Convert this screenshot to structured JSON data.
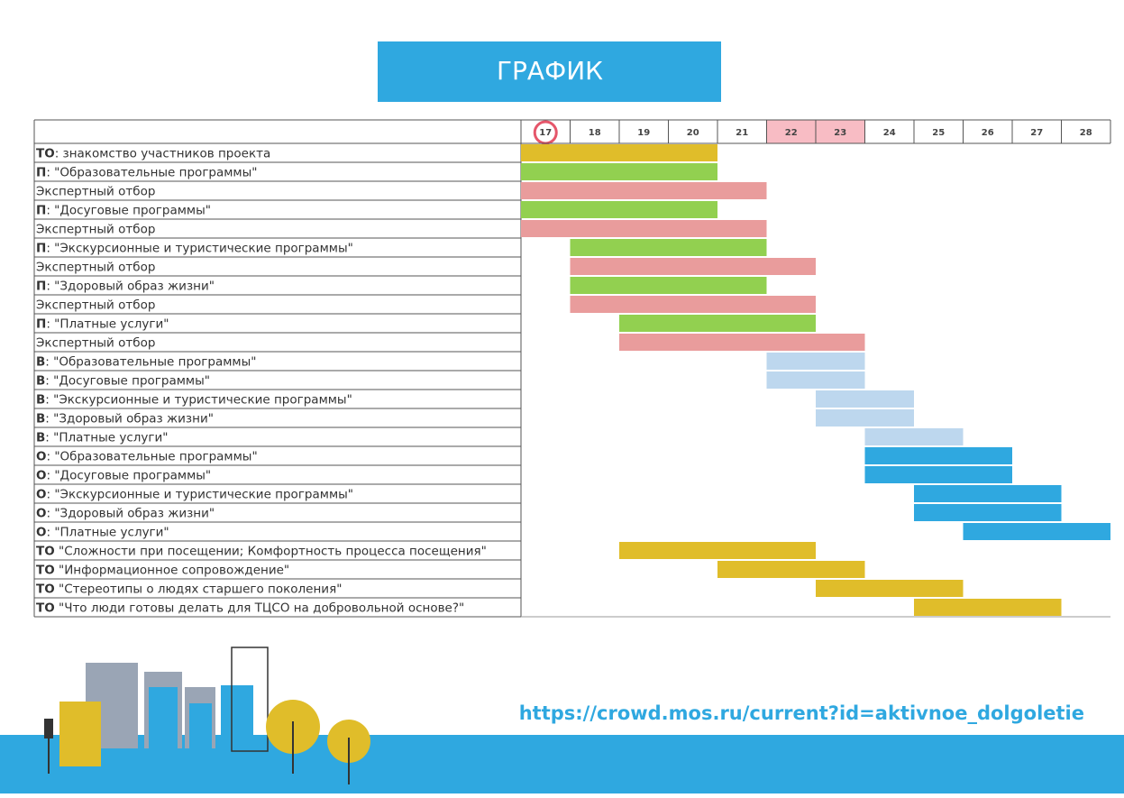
{
  "chart_data": {
    "type": "gantt",
    "title": "ГРАФИК",
    "days": [
      17,
      18,
      19,
      20,
      21,
      22,
      23,
      24,
      25,
      26,
      27,
      28
    ],
    "highlight_days": [
      22,
      23
    ],
    "circled_day": 17,
    "tasks": [
      {
        "prefix": "ТО",
        "label": ": знакомство участников проекта",
        "start": 17,
        "end": 20,
        "color": "#e0bd2a"
      },
      {
        "prefix": "П",
        "label": ": \"Образовательные программы\"",
        "start": 17,
        "end": 20,
        "color": "#92d050"
      },
      {
        "label": "Экспертный отбор",
        "start": 17,
        "end": 21,
        "color": "#e99c9c"
      },
      {
        "prefix": "П",
        "label": ": \"Досуговые программы\"",
        "start": 17,
        "end": 20,
        "color": "#92d050"
      },
      {
        "label": "Экспертный отбор",
        "start": 17,
        "end": 21,
        "color": "#e99c9c"
      },
      {
        "prefix": "П",
        "label": ": \"Экскурсионные и туристические программы\"",
        "start": 18,
        "end": 21,
        "color": "#92d050"
      },
      {
        "label": "Экспертный отбор",
        "start": 18,
        "end": 22,
        "color": "#e99c9c"
      },
      {
        "prefix": "П",
        "label": ": \"Здоровый образ жизни\"",
        "start": 18,
        "end": 21,
        "color": "#92d050"
      },
      {
        "label": "Экспертный отбор",
        "start": 18,
        "end": 22,
        "color": "#e99c9c"
      },
      {
        "prefix": "П",
        "label": ": \"Платные услуги\"",
        "start": 19,
        "end": 22,
        "color": "#92d050"
      },
      {
        "label": "Экспертный отбор",
        "start": 19,
        "end": 23,
        "color": "#e99c9c"
      },
      {
        "prefix": "В",
        "label": ": \"Образовательные программы\"",
        "start": 22,
        "end": 23,
        "color": "#bdd7ee"
      },
      {
        "prefix": "В",
        "label": ": \"Досуговые программы\"",
        "start": 22,
        "end": 23,
        "color": "#bdd7ee"
      },
      {
        "prefix": "В",
        "label": ": \"Экскурсионные и туристические программы\"",
        "start": 23,
        "end": 24,
        "color": "#bdd7ee"
      },
      {
        "prefix": "В",
        "label": ": \"Здоровый образ жизни\"",
        "start": 23,
        "end": 24,
        "color": "#bdd7ee"
      },
      {
        "prefix": "В",
        "label": ": \"Платные услуги\"",
        "start": 24,
        "end": 25,
        "color": "#bdd7ee"
      },
      {
        "prefix": "О",
        "label": ": \"Образовательные программы\"",
        "start": 24,
        "end": 26,
        "color": "#2fa8e0"
      },
      {
        "prefix": "О",
        "label": ": \"Досуговые программы\"",
        "start": 24,
        "end": 26,
        "color": "#2fa8e0"
      },
      {
        "prefix": "О",
        "label": ": \"Экскурсионные и туристические программы\"",
        "start": 25,
        "end": 27,
        "color": "#2fa8e0"
      },
      {
        "prefix": "О",
        "label": ": \"Здоровый образ жизни\"",
        "start": 25,
        "end": 27,
        "color": "#2fa8e0"
      },
      {
        "prefix": "О",
        "label": ": \"Платные услуги\"",
        "start": 26,
        "end": 28,
        "color": "#2fa8e0"
      },
      {
        "prefix": "ТО",
        "label": " \"Сложности при посещении; Комфортность процесса посещения\"",
        "start": 19,
        "end": 22,
        "color": "#e0bd2a"
      },
      {
        "prefix": "ТО",
        "label": " \"Информационное сопровождение\"",
        "start": 21,
        "end": 23,
        "color": "#e0bd2a"
      },
      {
        "prefix": "ТО",
        "label": " \"Стереотипы о людях старшего поколения\"",
        "start": 23,
        "end": 25,
        "color": "#e0bd2a"
      },
      {
        "prefix": "ТО",
        "label": " \"Что люди готовы делать для ТЦСО на добровольной основе?\"",
        "start": 25,
        "end": 27,
        "color": "#e0bd2a"
      }
    ],
    "url": "https://crowd.mos.ru/current?id=aktivnoe_dolgoletie"
  }
}
